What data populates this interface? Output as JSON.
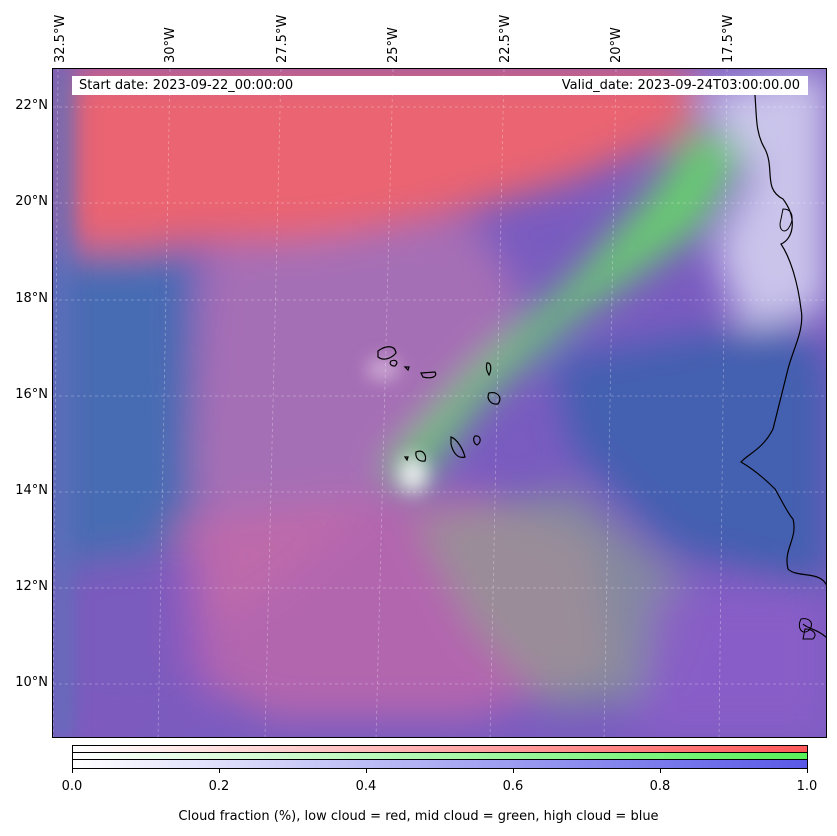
{
  "map": {
    "lon_ticks": [
      "32.5°W",
      "30°W",
      "27.5°W",
      "25°W",
      "22.5°W",
      "20°W",
      "17.5°W"
    ],
    "lat_ticks": [
      "22°N",
      "20°N",
      "18°N",
      "16°N",
      "14°N",
      "12°N",
      "10°N"
    ],
    "start_date": "Start date: 2023-09-22_00:00:00",
    "valid_date": "Valid_date: 2023-09-24T03:00:00.00"
  },
  "legend": {
    "ticks": [
      "0.0",
      "0.2",
      "0.4",
      "0.6",
      "0.8",
      "1.0"
    ],
    "label": "Cloud fraction (%), low cloud = red, mid cloud = green, high cloud = blue",
    "colors": {
      "low": "#ff5050",
      "mid": "#50f050",
      "high": "#5050e6"
    }
  }
}
